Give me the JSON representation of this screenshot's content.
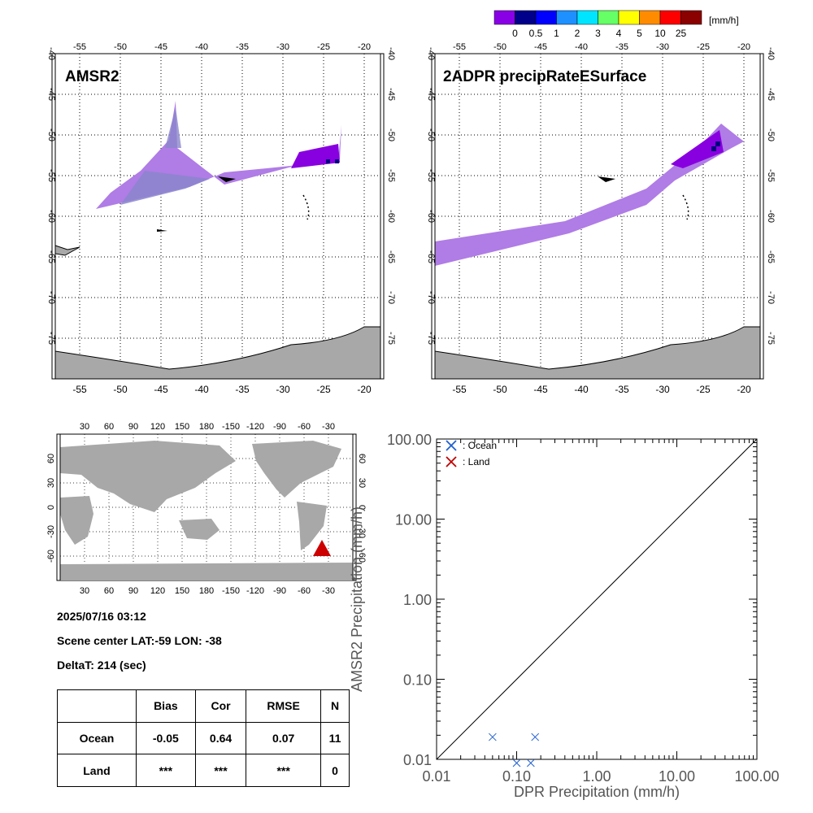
{
  "colorbar": {
    "unit": "[mm/h]",
    "ticks": [
      "0",
      "0.5",
      "1",
      "2",
      "3",
      "4",
      "5",
      "10",
      "25"
    ],
    "colors": [
      "#8a00e6",
      "#00008b",
      "#0000ff",
      "#1e90ff",
      "#00e5ff",
      "#66ff66",
      "#ffff00",
      "#ff8c00",
      "#ff0000",
      "#8b0000"
    ]
  },
  "map_left": {
    "title": "AMSR2",
    "lon_ticks": [
      "-55",
      "-50",
      "-45",
      "-40",
      "-35",
      "-30",
      "-25",
      "-20"
    ],
    "lat_ticks": [
      "-40",
      "-45",
      "-50",
      "-55",
      "-60",
      "-65",
      "-70",
      "-75"
    ]
  },
  "map_right": {
    "title": "2ADPR precipRateESurface",
    "lon_ticks": [
      "-55",
      "-50",
      "-45",
      "-40",
      "-35",
      "-30",
      "-25",
      "-20"
    ],
    "lat_ticks": [
      "-40",
      "-45",
      "-50",
      "-55",
      "-60",
      "-65",
      "-70",
      "-75"
    ]
  },
  "globe": {
    "lon_ticks": [
      "30",
      "60",
      "90",
      "120",
      "150",
      "180",
      "-150",
      "-120",
      "-90",
      "-60",
      "-30"
    ],
    "lat_ticks": [
      "60",
      "30",
      "0",
      "-30",
      "-60"
    ],
    "marker_color": "#cc0000"
  },
  "info": {
    "datetime": "2025/07/16 03:12",
    "scene_center": "Scene center LAT:-59   LON: -38",
    "deltat": "DeltaT:  214 (sec)"
  },
  "stats": {
    "headers": [
      "",
      "Bias",
      "Cor",
      "RMSE",
      "N"
    ],
    "rows": [
      [
        "Ocean",
        "-0.05",
        "0.64",
        "0.07",
        "11"
      ],
      [
        "Land",
        "***",
        "***",
        "***",
        "0"
      ]
    ]
  },
  "chart_data": {
    "type": "scatter",
    "xlabel": "DPR Precipitation (mm/h)",
    "ylabel": "AMSR2 Precipitation (mm/h)",
    "x_scale": "log",
    "y_scale": "log",
    "xlim": [
      0.01,
      100
    ],
    "ylim": [
      0.01,
      100
    ],
    "x_tick_labels": [
      "0.01",
      "0.10",
      "1.00",
      "10.00",
      "100.00"
    ],
    "y_tick_labels": [
      "0.01",
      "0.10",
      "1.00",
      "10.00",
      "100.00"
    ],
    "legend_placement": "top-left",
    "series": [
      {
        "name": ": Ocean",
        "color": "#1f5fd0",
        "x": [
          0.05,
          0.1,
          0.15,
          0.17
        ],
        "y": [
          0.019,
          0.009,
          0.009,
          0.019
        ]
      },
      {
        "name": ": Land",
        "color": "#c00000",
        "x": [],
        "y": []
      }
    ],
    "reference_line": "y = x"
  }
}
